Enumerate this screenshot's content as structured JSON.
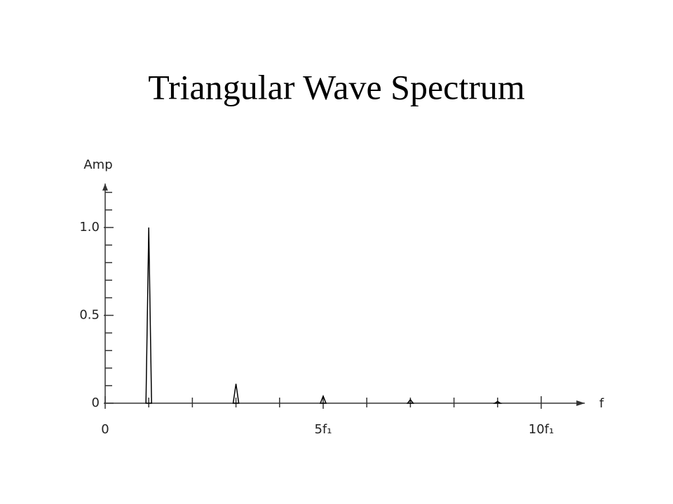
{
  "chart_data": {
    "type": "spectrum",
    "title": "Triangular Wave Spectrum",
    "ylabel": "Amp",
    "xlabel": "f",
    "x": [
      1,
      3,
      5,
      7,
      9
    ],
    "values": [
      1.0,
      0.11,
      0.04,
      0.02,
      0.01
    ],
    "color": "#000000",
    "xlim": [
      0,
      11
    ],
    "xticks": [
      0,
      {
        "value": 5,
        "label": "5f₁"
      },
      {
        "value": 10,
        "label": "10f₁"
      }
    ],
    "xminorticks": [
      1,
      2,
      3,
      4,
      6,
      7,
      8,
      9
    ],
    "ylim": [
      0,
      1.25
    ],
    "yticks": [
      0,
      0.5,
      {
        "value": 1,
        "label": "1.0"
      }
    ],
    "yminorticks": [
      0.1,
      0.2,
      0.3,
      0.4,
      0.6,
      0.7,
      0.8,
      0.9,
      1.1,
      1.2
    ],
    "grid": false
  }
}
